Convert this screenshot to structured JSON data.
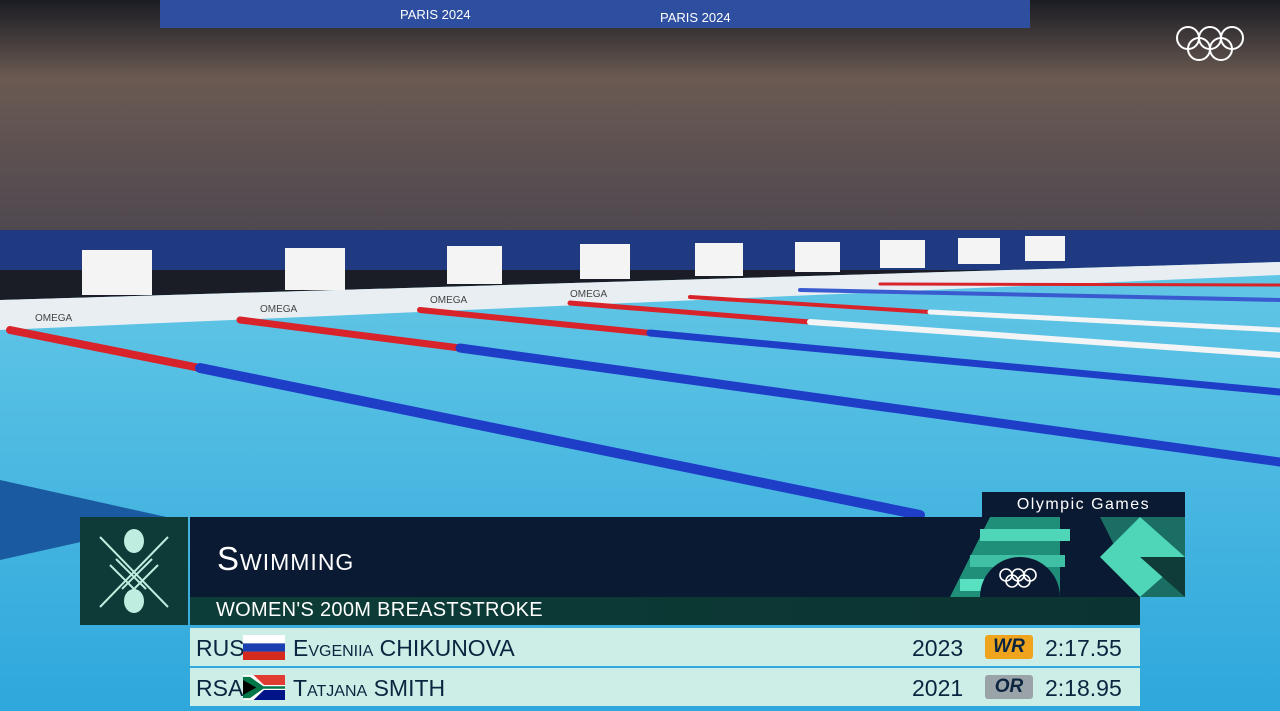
{
  "arena": {
    "banner_text": [
      "PARIS 2024",
      "PARIS 2024"
    ],
    "sponsor_boards": [
      "OMEGA",
      "OMEGA",
      "OMEGA",
      "OMEGA"
    ]
  },
  "graphic": {
    "brand_label": "Olympic Games",
    "sport": "Swimming",
    "event": "WOMEN'S 200M BREASTSTROKE",
    "sport_icon": "swimming-pictogram-icon",
    "colors": {
      "navy": "#0a1a33",
      "green": "#0e3b38",
      "row": "#cdeee6",
      "wr": "#f0a31c",
      "or": "#9aa3a8"
    },
    "records": [
      {
        "country": "RUS",
        "flag": "russia-flag-icon",
        "name": "Evgeniia CHIKUNOVA",
        "year": "2023",
        "badge": "WR",
        "time": "2:17.55"
      },
      {
        "country": "RSA",
        "flag": "south-africa-flag-icon",
        "name": "Tatjana SMITH",
        "year": "2021",
        "badge": "OR",
        "time": "2:18.95"
      }
    ]
  }
}
